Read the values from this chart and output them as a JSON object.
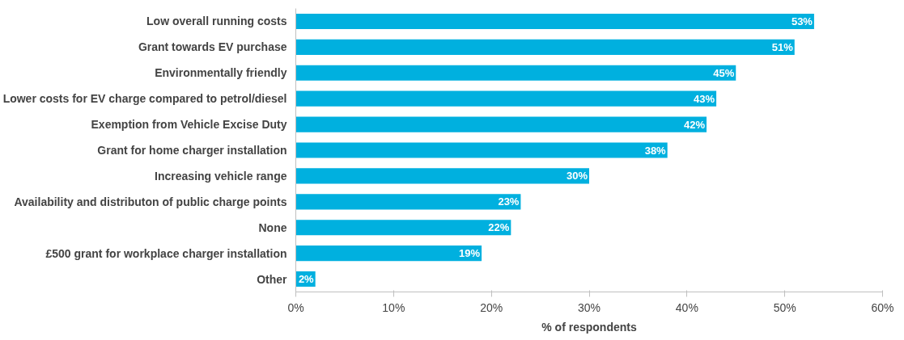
{
  "chart_data": {
    "type": "bar",
    "orientation": "horizontal",
    "xlabel": "% of respondents",
    "categories": [
      "Low overall running costs",
      "Grant towards EV purchase",
      "Environmentally friendly",
      "Lower costs for EV charge compared to petrol/diesel",
      "Exemption from Vehicle Excise Duty",
      "Grant for home charger installation",
      "Increasing vehicle range",
      "Availability and distributon of public charge points",
      "None",
      "£500 grant for workplace charger installation",
      "Other"
    ],
    "values": [
      53,
      51,
      45,
      43,
      42,
      38,
      30,
      23,
      22,
      19,
      2
    ],
    "value_labels": [
      "53%",
      "51%",
      "45%",
      "43%",
      "42%",
      "38%",
      "30%",
      "23%",
      "22%",
      "19%",
      "2%"
    ],
    "color": "#00b0df",
    "xlim": [
      0,
      60
    ],
    "xticks": [
      {
        "value": 0,
        "label": "0%"
      },
      {
        "value": 10,
        "label": "10%"
      },
      {
        "value": 20,
        "label": "20%"
      },
      {
        "value": 30,
        "label": "30%"
      },
      {
        "value": 40,
        "label": "40%"
      },
      {
        "value": 50,
        "label": "50%"
      },
      {
        "value": 60,
        "label": "60%"
      }
    ],
    "grid": false
  }
}
